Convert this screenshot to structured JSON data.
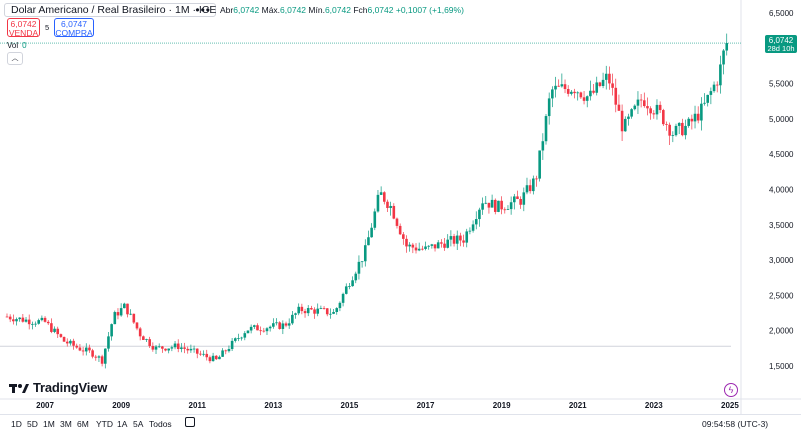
{
  "header": {
    "title": "Dolar Americano / Real Brasileiro · 1M · ICE",
    "more_label": "•••",
    "ohlc": {
      "open_label": "Abr",
      "open": "6,0742",
      "high_label": "Máx.",
      "high": "6,0742",
      "low_label": "Mín.",
      "low": "6,0742",
      "close_label": "Fch",
      "close": "6,0742",
      "change": "+0,1007 (+1,69%)"
    },
    "sell": {
      "price": "6,0742",
      "label": "VENDA"
    },
    "spread": "5",
    "buy": {
      "price": "6,0747",
      "label": "COMPRA"
    },
    "volume_label": "Vol",
    "volume_value": "0",
    "collapse_icon": "chevron-up-icon"
  },
  "chart_data": {
    "type": "candlestick",
    "interval": "1M",
    "x_range": [
      "2006",
      "2025"
    ],
    "ylim": [
      1.3,
      6.55
    ],
    "y_ticks": [
      "6,5000",
      "6,0000",
      "5,5000",
      "5,0000",
      "4,5000",
      "4,0000",
      "3,5000",
      "3,0000",
      "2,5000",
      "2,0000",
      "1,5000"
    ],
    "x_ticks": [
      "2007",
      "2009",
      "2011",
      "2013",
      "2015",
      "2017",
      "2019",
      "2021",
      "2023",
      "2025"
    ],
    "last_price_label": "6,0742",
    "countdown_label": "28d 10h",
    "last_price": 6.0742,
    "reference_line": 1.78,
    "up_color": "#089981",
    "down_color": "#f23645",
    "anchors": [
      [
        2006.0,
        2.2
      ],
      [
        2006.5,
        2.15
      ],
      [
        2007.0,
        2.12
      ],
      [
        2007.5,
        1.85
      ],
      [
        2007.9,
        1.75
      ],
      [
        2008.25,
        1.68
      ],
      [
        2008.5,
        1.58
      ],
      [
        2008.8,
        2.2
      ],
      [
        2009.1,
        2.35
      ],
      [
        2009.5,
        1.95
      ],
      [
        2009.9,
        1.75
      ],
      [
        2010.5,
        1.78
      ],
      [
        2011.0,
        1.68
      ],
      [
        2011.5,
        1.58
      ],
      [
        2011.8,
        1.75
      ],
      [
        2012.3,
        2.02
      ],
      [
        2012.8,
        2.05
      ],
      [
        2013.3,
        2.08
      ],
      [
        2013.7,
        2.3
      ],
      [
        2014.2,
        2.28
      ],
      [
        2014.6,
        2.25
      ],
      [
        2015.0,
        2.7
      ],
      [
        2015.4,
        3.1
      ],
      [
        2015.8,
        3.95
      ],
      [
        2016.1,
        3.75
      ],
      [
        2016.5,
        3.2
      ],
      [
        2017.0,
        3.15
      ],
      [
        2017.5,
        3.25
      ],
      [
        2018.0,
        3.3
      ],
      [
        2018.5,
        3.85
      ],
      [
        2018.9,
        3.75
      ],
      [
        2019.5,
        3.85
      ],
      [
        2019.9,
        4.15
      ],
      [
        2020.3,
        5.4
      ],
      [
        2020.9,
        5.45
      ],
      [
        2021.3,
        5.3
      ],
      [
        2021.8,
        5.6
      ],
      [
        2022.2,
        4.85
      ],
      [
        2022.7,
        5.3
      ],
      [
        2023.2,
        5.05
      ],
      [
        2023.5,
        4.8
      ],
      [
        2023.9,
        4.9
      ],
      [
        2024.3,
        5.15
      ],
      [
        2024.7,
        5.6
      ],
      [
        2024.9,
        6.08
      ]
    ]
  },
  "brand": {
    "name": "TradingView",
    "icon": "tradingview-logo-icon"
  },
  "toolbar": {
    "ranges": [
      "1D",
      "5D",
      "1M",
      "3M",
      "6M",
      "YTD",
      "1A",
      "5A",
      "Todos"
    ],
    "calendar_icon": "calendar-icon",
    "clock": "09:54:58 (UTC-3)",
    "indicator_icon": "lightning-icon"
  }
}
